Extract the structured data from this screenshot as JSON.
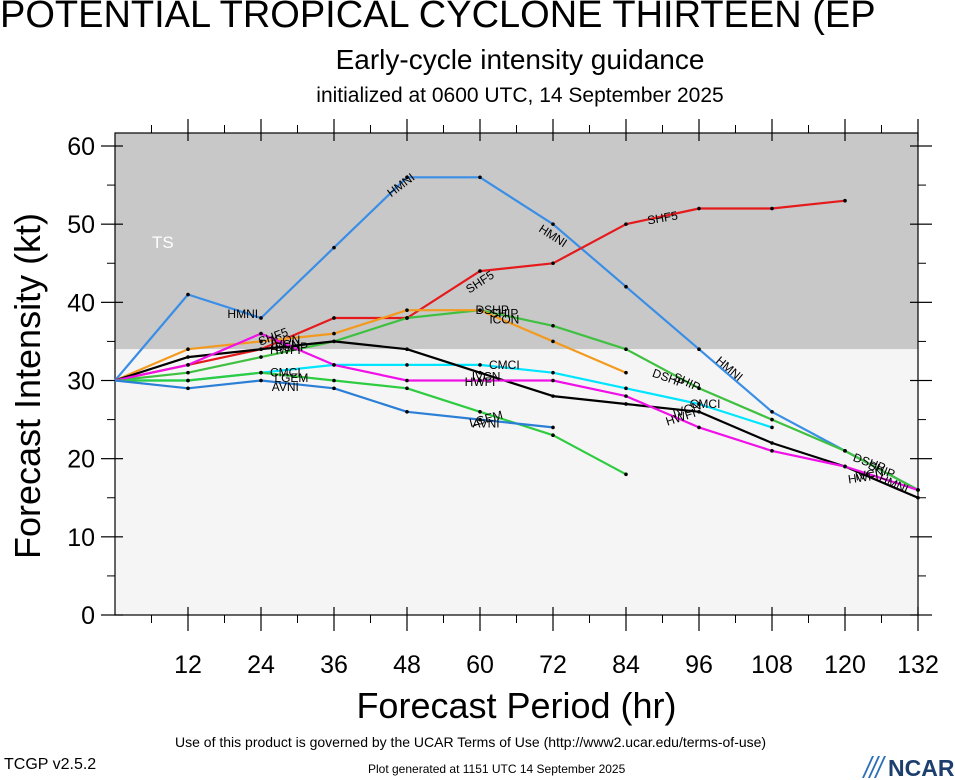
{
  "header": {
    "title": "POTENTIAL TROPICAL CYCLONE THIRTEEN (EP",
    "subtitle": "Early-cycle intensity guidance",
    "init": "initialized at 0600 UTC, 14 September 2025"
  },
  "footer": {
    "terms": "Use of this product is governed by the UCAR Terms of Use (http://www2.ucar.edu/terms-of-use)",
    "generated": "Plot generated at 1151 UTC   14 September 2025",
    "version": "TCGP v2.5.2",
    "logo_text": "NCAR"
  },
  "chart_data": {
    "type": "line",
    "xlabel": "Forecast Period (hr)",
    "ylabel": "Forecast Intensity (kt)",
    "xlim": [
      0,
      132
    ],
    "ylim": [
      0,
      60
    ],
    "xticks": [
      12,
      24,
      36,
      48,
      60,
      72,
      84,
      96,
      108,
      120,
      132
    ],
    "yticks": [
      0,
      10,
      20,
      30,
      40,
      50,
      60
    ],
    "bands": [
      {
        "label": "TS",
        "from": 34,
        "to": 62,
        "color": "#c8c8c8"
      },
      {
        "label": "",
        "from": 0,
        "to": 34,
        "color": "#f5f5f5"
      }
    ],
    "series": [
      {
        "name": "HMNI",
        "color": "#3a8ee6",
        "x": [
          0,
          12,
          24,
          36,
          48,
          60,
          72,
          84,
          96,
          108,
          120,
          132
        ],
        "y": [
          30,
          41,
          38,
          47,
          56,
          56,
          50,
          42,
          34,
          26,
          21,
          16
        ],
        "labels": [
          {
            "x": 21,
            "y": 38.5,
            "angle": 0
          },
          {
            "x": 47,
            "y": 55,
            "angle": -37
          },
          {
            "x": 72,
            "y": 48.5,
            "angle": 33
          },
          {
            "x": 101,
            "y": 31.5,
            "angle": 40
          },
          {
            "x": 128,
            "y": 16.8,
            "angle": 24
          }
        ]
      },
      {
        "name": "SHF5",
        "color": "#e41a1c",
        "x": [
          0,
          12,
          24,
          36,
          48,
          60,
          72,
          84,
          96,
          108,
          120
        ],
        "y": [
          30,
          32,
          34,
          38,
          38,
          44,
          45,
          50,
          52,
          52,
          53
        ],
        "labels": [
          {
            "x": 26,
            "y": 35.6,
            "angle": -20
          },
          {
            "x": 60,
            "y": 42.6,
            "angle": -33
          },
          {
            "x": 90,
            "y": 50.8,
            "angle": -10
          }
        ]
      },
      {
        "name": "SHIP",
        "color": "#40c040",
        "x": [
          0,
          12,
          24,
          36,
          48,
          60,
          72,
          84,
          96,
          108,
          120,
          132
        ],
        "y": [
          30,
          31,
          33,
          35,
          38,
          39,
          37,
          34,
          29,
          25,
          21,
          16
        ],
        "labels": [
          {
            "x": 64,
            "y": 38.6,
            "angle": 0
          },
          {
            "x": 94,
            "y": 29.8,
            "angle": 25
          },
          {
            "x": 126,
            "y": 18.6,
            "angle": 22
          }
        ]
      },
      {
        "name": "DSHP",
        "color": "#40c040",
        "x": [],
        "y": [],
        "labels": [
          {
            "x": 29,
            "y": 34.3,
            "angle": 0
          },
          {
            "x": 62,
            "y": 39,
            "angle": 0
          },
          {
            "x": 91,
            "y": 30.3,
            "angle": 20
          },
          {
            "x": 124,
            "y": 19.5,
            "angle": 20
          }
        ]
      },
      {
        "name": "ICON",
        "color": "#f39a1e",
        "x": [
          0,
          12,
          24,
          36,
          48,
          60,
          72,
          84
        ],
        "y": [
          30,
          34,
          35,
          36,
          39,
          39,
          35,
          31
        ],
        "labels": [
          {
            "x": 28,
            "y": 35.2,
            "angle": 0
          },
          {
            "x": 64,
            "y": 37.8,
            "angle": 0
          }
        ]
      },
      {
        "name": "CMCI",
        "color": "#00e5ff",
        "x": [
          0,
          12,
          24,
          36,
          48,
          60,
          72,
          84,
          96,
          108
        ],
        "y": [
          30,
          30,
          31,
          32,
          32,
          32,
          31,
          29,
          27,
          24
        ],
        "labels": [
          {
            "x": 28,
            "y": 31,
            "angle": 0
          },
          {
            "x": 64,
            "y": 32,
            "angle": 0
          },
          {
            "x": 97,
            "y": 27,
            "angle": 0
          }
        ]
      },
      {
        "name": "IVCN",
        "color": "#000000",
        "x": [
          0,
          12,
          24,
          36,
          48,
          60,
          72,
          84,
          96,
          108,
          120,
          132
        ],
        "y": [
          30,
          33,
          34,
          35,
          34,
          31,
          28,
          27,
          26,
          22,
          19,
          15
        ],
        "labels": [
          {
            "x": 28,
            "y": 34.6,
            "angle": 0
          },
          {
            "x": 61,
            "y": 30.5,
            "angle": 0
          },
          {
            "x": 94,
            "y": 26.3,
            "angle": -18
          },
          {
            "x": 124,
            "y": 18,
            "angle": -10
          }
        ]
      },
      {
        "name": "HWFI",
        "color": "#f010e8",
        "x": [
          0,
          12,
          24,
          36,
          48,
          60,
          72,
          84,
          96,
          108,
          120,
          132
        ],
        "y": [
          30,
          32,
          36,
          32,
          30,
          30,
          30,
          28,
          24,
          21,
          19,
          16
        ],
        "labels": [
          {
            "x": 28,
            "y": 33.9,
            "angle": 0
          },
          {
            "x": 60,
            "y": 29.8,
            "angle": 0
          },
          {
            "x": 93,
            "y": 25.3,
            "angle": -18
          },
          {
            "x": 123,
            "y": 17.6,
            "angle": -8
          }
        ]
      },
      {
        "name": "LGEM",
        "color": "#2ecc40",
        "x": [
          0,
          12,
          24,
          36,
          48,
          60,
          72,
          84
        ],
        "y": [
          30,
          30,
          31,
          30,
          29,
          26,
          23,
          18
        ],
        "labels": [
          {
            "x": 29,
            "y": 30.3,
            "angle": 0
          },
          {
            "x": 61,
            "y": 25.1,
            "angle": -15
          }
        ]
      },
      {
        "name": "AVNI",
        "color": "#2c7fd6",
        "x": [
          0,
          12,
          24,
          36,
          48,
          60,
          72
        ],
        "y": [
          30,
          29,
          30,
          29,
          26,
          25,
          24
        ],
        "labels": [
          {
            "x": 28,
            "y": 29.2,
            "angle": 0
          },
          {
            "x": 61,
            "y": 24.5,
            "angle": 0
          }
        ]
      }
    ],
    "band_label": "TS"
  }
}
